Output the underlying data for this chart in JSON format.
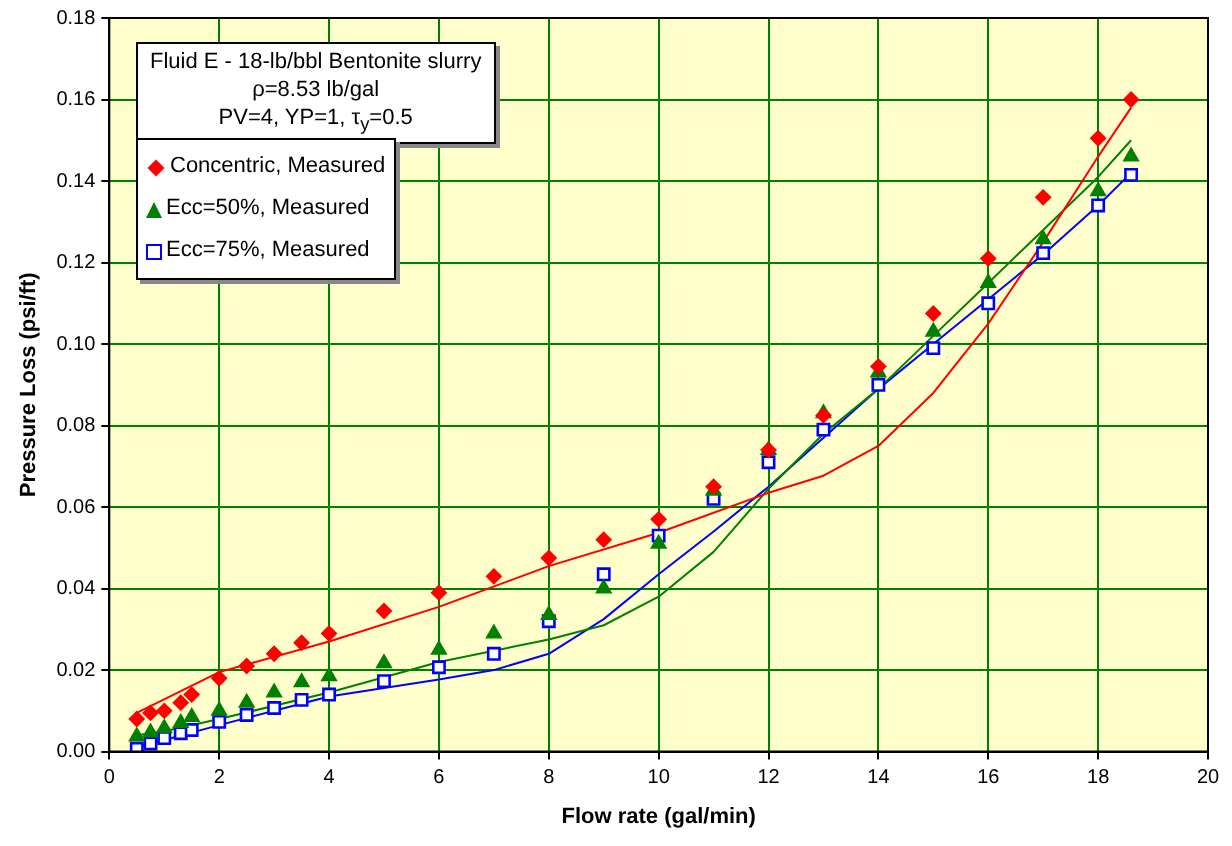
{
  "chart_data": {
    "type": "scatter",
    "xlabel": "Flow rate (gal/min)",
    "ylabel": "Pressure Loss (psi/ft)",
    "annotations": [
      "Fluid E - 18-lb/bbl Bentonite slurry",
      "ρ=8.53 lb/gal",
      "PV=4, YP=1, τ$_{y}$=0.5"
    ],
    "xlim": [
      0,
      20
    ],
    "xticks": [
      0,
      2,
      4,
      6,
      8,
      10,
      12,
      14,
      16,
      18,
      20
    ],
    "ylim": [
      0,
      0.18
    ],
    "yticks": [
      {
        "value": 0,
        "label": "0.00"
      },
      {
        "value": 0.02,
        "label": "0.02"
      },
      {
        "value": 0.04,
        "label": "0.04"
      },
      {
        "value": 0.06,
        "label": "0.06"
      },
      {
        "value": 0.08,
        "label": "0.08"
      },
      {
        "value": 0.1,
        "label": "0.10"
      },
      {
        "value": 0.12,
        "label": "0.12"
      },
      {
        "value": 0.14,
        "label": "0.14"
      },
      {
        "value": 0.16,
        "label": "0.16"
      },
      {
        "value": 0.18,
        "label": "0.18"
      }
    ],
    "grid": true,
    "legend": "top left",
    "series": [
      {
        "type": "line",
        "marker": "none",
        "color": "#ff0000",
        "x": [
          0.5,
          2,
          4,
          6,
          8,
          10,
          12,
          13,
          14,
          15,
          16,
          17,
          18,
          18.6
        ],
        "values": [
          0.0095,
          0.0195,
          0.027,
          0.0355,
          0.0455,
          0.0537,
          0.0635,
          0.0677,
          0.075,
          0.088,
          0.105,
          0.125,
          0.146,
          0.158
        ]
      },
      {
        "type": "line",
        "marker": "none",
        "color": "#008000",
        "x": [
          0.5,
          1,
          2,
          4,
          6,
          8,
          9,
          10,
          11,
          12,
          13,
          14,
          15,
          16,
          17,
          18,
          18.6
        ],
        "values": [
          0.004,
          0.005,
          0.008,
          0.0145,
          0.022,
          0.0275,
          0.031,
          0.038,
          0.049,
          0.0645,
          0.078,
          0.089,
          0.102,
          0.115,
          0.128,
          0.141,
          0.15
        ]
      },
      {
        "type": "line",
        "marker": "none",
        "color": "#0000ff",
        "x": [
          0.5,
          2,
          4,
          6,
          7,
          8,
          9,
          10,
          11,
          12,
          13,
          14,
          15,
          16,
          17,
          18,
          18.6
        ],
        "values": [
          0.001,
          0.0065,
          0.0135,
          0.0177,
          0.02,
          0.024,
          0.0325,
          0.0435,
          0.054,
          0.065,
          0.077,
          0.089,
          0.1,
          0.111,
          0.122,
          0.134,
          0.142
        ]
      },
      {
        "name": "Concentric, Measured",
        "type": "scatter",
        "marker": "diamond",
        "color": "#ff0000",
        "x": [
          0.5,
          0.75,
          1,
          1.3,
          1.5,
          2,
          2.5,
          3,
          3.5,
          4,
          5,
          6,
          7,
          8,
          9,
          10,
          11,
          12,
          13,
          14,
          15,
          16,
          17,
          18,
          18.6
        ],
        "values": [
          0.008,
          0.0095,
          0.01,
          0.012,
          0.014,
          0.018,
          0.021,
          0.024,
          0.0267,
          0.029,
          0.0345,
          0.039,
          0.043,
          0.0475,
          0.052,
          0.057,
          0.065,
          0.074,
          0.0825,
          0.0945,
          0.1075,
          0.121,
          0.136,
          0.1505,
          0.16
        ]
      },
      {
        "name": "Ecc=50%, Measured",
        "type": "scatter",
        "marker": "triangle",
        "color": "#008000",
        "x": [
          0.5,
          0.75,
          1,
          1.3,
          1.5,
          2,
          2.5,
          3,
          3.5,
          4,
          5,
          6,
          7,
          8,
          9,
          10,
          11,
          12,
          13,
          14,
          15,
          16,
          17,
          18,
          18.6
        ],
        "values": [
          0.0037,
          0.0047,
          0.0057,
          0.007,
          0.0085,
          0.01,
          0.012,
          0.0145,
          0.017,
          0.0185,
          0.0217,
          0.025,
          0.029,
          0.0335,
          0.04,
          0.051,
          0.064,
          0.074,
          0.083,
          0.093,
          0.103,
          0.115,
          0.1257,
          0.1375,
          0.146
        ]
      },
      {
        "name": "Ecc=75%, Measured",
        "type": "scatter",
        "marker": "square",
        "color": "#0000ff",
        "x": [
          0.5,
          0.75,
          1,
          1.3,
          1.5,
          2,
          2.5,
          3,
          3.5,
          4,
          5,
          6,
          7,
          8,
          9,
          10,
          11,
          12,
          13,
          14,
          15,
          16,
          17,
          18,
          18.6
        ],
        "values": [
          0.0007,
          0.002,
          0.0033,
          0.0045,
          0.0053,
          0.0073,
          0.009,
          0.0107,
          0.0127,
          0.014,
          0.0173,
          0.0207,
          0.024,
          0.032,
          0.0435,
          0.053,
          0.062,
          0.071,
          0.079,
          0.09,
          0.099,
          0.11,
          0.1223,
          0.134,
          0.1415
        ]
      }
    ]
  }
}
